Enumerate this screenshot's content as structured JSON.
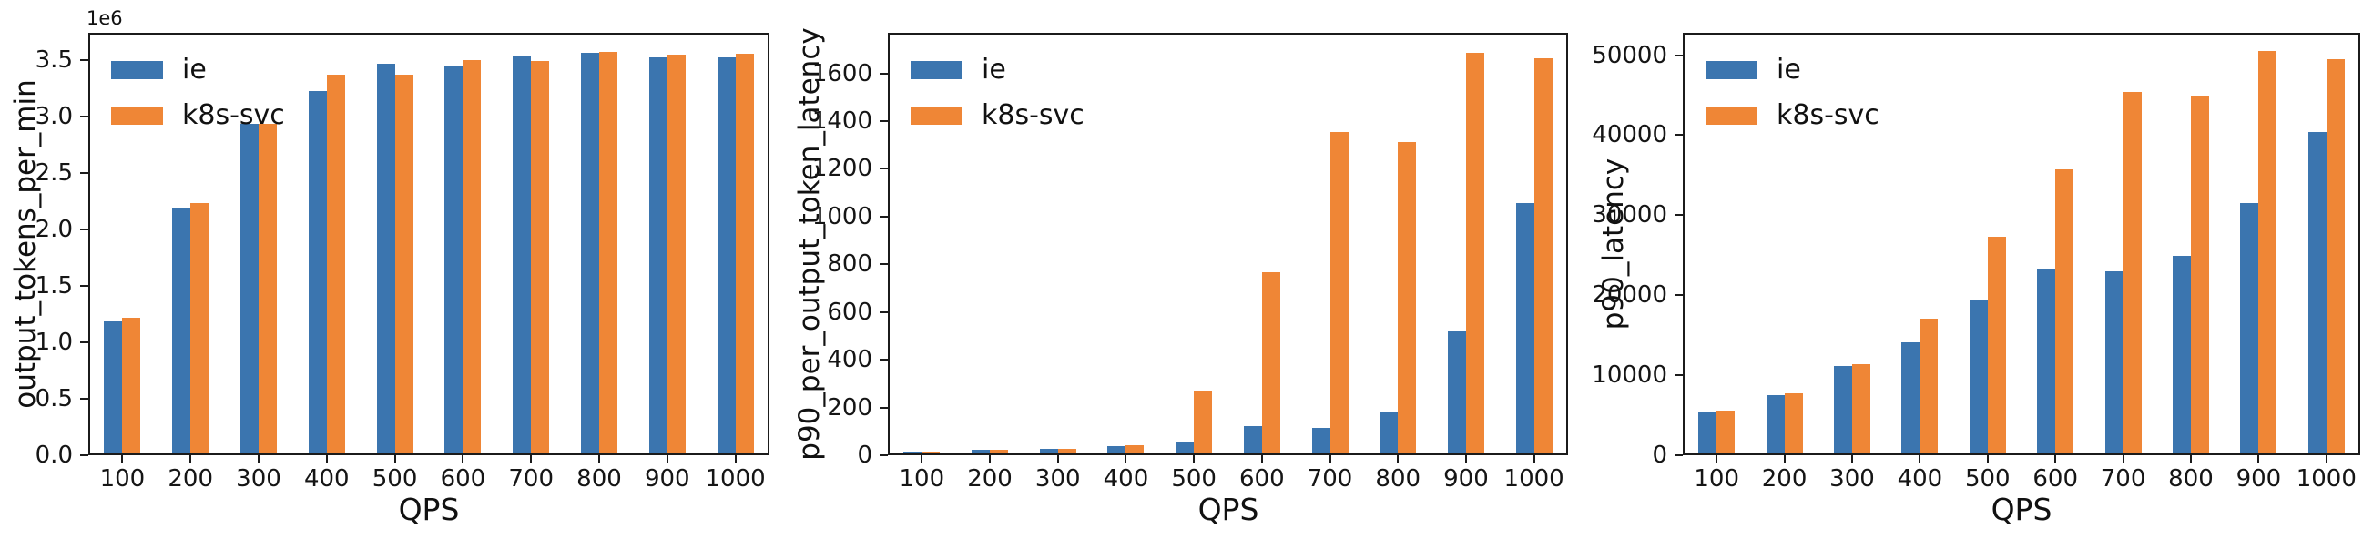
{
  "figure": {
    "background": "#ffffff"
  },
  "colors": {
    "ie": "#3b75af",
    "k8s_svc": "#ef8636",
    "spine": "#1b1b1b",
    "text": "#151515"
  },
  "legend": {
    "position": "upper-left",
    "items": [
      {
        "label": "ie",
        "color": "#3b75af"
      },
      {
        "label": "k8s-svc",
        "color": "#ef8636"
      }
    ]
  },
  "chart_data": [
    {
      "type": "bar",
      "title": "",
      "xlabel": "QPS",
      "ylabel": "output_tokens_per_min",
      "offset_text": "1e6",
      "grid": false,
      "categories": [
        "100",
        "200",
        "300",
        "400",
        "500",
        "600",
        "700",
        "800",
        "900",
        "1000"
      ],
      "series": [
        {
          "name": "ie",
          "color": "#3b75af",
          "values": [
            1170000,
            2170000,
            2920000,
            3210000,
            3450000,
            3430000,
            3520000,
            3545000,
            3510000,
            3505000
          ]
        },
        {
          "name": "k8s-svc",
          "color": "#ef8636",
          "values": [
            1200000,
            2220000,
            2920000,
            3350000,
            3350000,
            3480000,
            3470000,
            3555000,
            3530000,
            3535000
          ]
        }
      ],
      "ylim": [
        0,
        3740000
      ],
      "ytick_values": [
        0,
        500000,
        1000000,
        1500000,
        2000000,
        2500000,
        3000000,
        3500000
      ],
      "ytick_labels": [
        "0.0",
        "0.5",
        "1.0",
        "1.5",
        "2.0",
        "2.5",
        "3.0",
        "3.5"
      ]
    },
    {
      "type": "bar",
      "title": "",
      "xlabel": "QPS",
      "ylabel": "p90_per_output_token_latency",
      "offset_text": "",
      "grid": false,
      "categories": [
        "100",
        "200",
        "300",
        "400",
        "500",
        "600",
        "700",
        "800",
        "900",
        "1000"
      ],
      "series": [
        {
          "name": "ie",
          "color": "#3b75af",
          "values": [
            8,
            14,
            20,
            31,
            45,
            114,
            105,
            172,
            512,
            1050
          ]
        },
        {
          "name": "k8s-svc",
          "color": "#ef8636",
          "values": [
            8,
            15,
            20,
            35,
            265,
            760,
            1345,
            1305,
            1680,
            1655
          ]
        }
      ],
      "ylim": [
        0,
        1770
      ],
      "ytick_values": [
        0,
        200,
        400,
        600,
        800,
        1000,
        1200,
        1400,
        1600
      ],
      "ytick_labels": [
        "0",
        "200",
        "400",
        "600",
        "800",
        "1000",
        "1200",
        "1400",
        "1600"
      ]
    },
    {
      "type": "bar",
      "title": "",
      "xlabel": "QPS",
      "ylabel": "p90_latency",
      "offset_text": "",
      "grid": false,
      "categories": [
        "100",
        "200",
        "300",
        "400",
        "500",
        "600",
        "700",
        "800",
        "900",
        "1000"
      ],
      "series": [
        {
          "name": "ie",
          "color": "#3b75af",
          "values": [
            5200,
            7300,
            10900,
            13900,
            19100,
            23000,
            22800,
            24700,
            31300,
            40200
          ]
        },
        {
          "name": "k8s-svc",
          "color": "#ef8636",
          "values": [
            5350,
            7550,
            11100,
            16800,
            27100,
            35500,
            45200,
            44700,
            50300,
            49300
          ]
        }
      ],
      "ylim": [
        0,
        52800
      ],
      "ytick_values": [
        0,
        10000,
        20000,
        30000,
        40000,
        50000
      ],
      "ytick_labels": [
        "0",
        "10000",
        "20000",
        "30000",
        "40000",
        "50000"
      ]
    }
  ]
}
